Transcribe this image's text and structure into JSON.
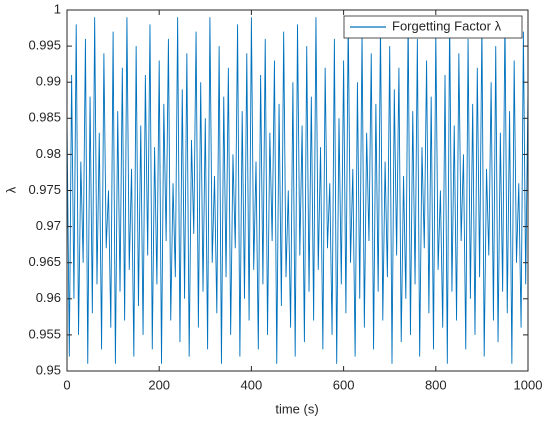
{
  "chart_data": {
    "type": "line",
    "xlabel": "time (s)",
    "ylabel": "λ",
    "xlim": [
      0,
      1000
    ],
    "xticks": [
      0,
      200,
      400,
      600,
      800,
      1000
    ],
    "ylim": [
      0.95,
      1
    ],
    "yticks": [
      0.95,
      0.955,
      0.96,
      0.965,
      0.97,
      0.975,
      0.98,
      0.985,
      0.99,
      0.995,
      1
    ],
    "grid": false,
    "legend_position": "top-right",
    "x": [
      0,
      5,
      10,
      15,
      20,
      25,
      30,
      35,
      40,
      45,
      50,
      55,
      60,
      65,
      70,
      75,
      80,
      85,
      90,
      95,
      100,
      105,
      110,
      115,
      120,
      125,
      130,
      135,
      140,
      145,
      150,
      155,
      160,
      165,
      170,
      175,
      180,
      185,
      190,
      195,
      200,
      205,
      210,
      215,
      220,
      225,
      230,
      235,
      240,
      245,
      250,
      255,
      260,
      265,
      270,
      275,
      280,
      285,
      290,
      295,
      300,
      305,
      310,
      315,
      320,
      325,
      330,
      335,
      340,
      345,
      350,
      355,
      360,
      365,
      370,
      375,
      380,
      385,
      390,
      395,
      400,
      405,
      410,
      415,
      420,
      425,
      430,
      435,
      440,
      445,
      450,
      455,
      460,
      465,
      470,
      475,
      480,
      485,
      490,
      495,
      500,
      505,
      510,
      515,
      520,
      525,
      530,
      535,
      540,
      545,
      550,
      555,
      560,
      565,
      570,
      575,
      580,
      585,
      590,
      595,
      600,
      605,
      610,
      615,
      620,
      625,
      630,
      635,
      640,
      645,
      650,
      655,
      660,
      665,
      670,
      675,
      680,
      685,
      690,
      695,
      700,
      705,
      710,
      715,
      720,
      725,
      730,
      735,
      740,
      745,
      750,
      755,
      760,
      765,
      770,
      775,
      780,
      785,
      790,
      795,
      800,
      805,
      810,
      815,
      820,
      825,
      830,
      835,
      840,
      845,
      850,
      855,
      860,
      865,
      870,
      875,
      880,
      885,
      890,
      895,
      900,
      905,
      910,
      915,
      920,
      925,
      930,
      935,
      940,
      945,
      950,
      955,
      960,
      965,
      970,
      975,
      980,
      985,
      990,
      995,
      1000
    ],
    "series": [
      {
        "name": "Forgetting Factor λ",
        "color": "#0072bd",
        "values": [
          0.985,
          0.952,
          0.991,
          0.96,
          0.998,
          0.955,
          0.979,
          0.965,
          0.996,
          0.951,
          0.988,
          0.958,
          0.999,
          0.962,
          0.983,
          0.953,
          0.994,
          0.967,
          0.975,
          0.956,
          0.997,
          0.951,
          0.986,
          0.961,
          0.992,
          0.957,
          0.999,
          0.964,
          0.978,
          0.952,
          0.995,
          0.959,
          0.984,
          0.955,
          0.991,
          0.966,
          0.998,
          0.953,
          0.981,
          0.962,
          0.993,
          0.951,
          0.987,
          0.968,
          0.996,
          0.957,
          0.976,
          0.963,
          0.999,
          0.954,
          0.989,
          0.96,
          0.994,
          0.952,
          0.982,
          0.969,
          0.997,
          0.956,
          0.99,
          0.961,
          0.985,
          0.953,
          0.999,
          0.965,
          0.977,
          0.958,
          0.995,
          0.951,
          0.988,
          0.963,
          0.992,
          0.955,
          0.98,
          0.967,
          0.998,
          0.952,
          0.986,
          0.96,
          0.994,
          0.957,
          0.999,
          0.964,
          0.979,
          0.953,
          0.991,
          0.962,
          0.996,
          0.955,
          0.983,
          0.968,
          0.993,
          0.951,
          0.987,
          0.959,
          0.997,
          0.963,
          0.975,
          0.956,
          0.99,
          0.952,
          0.998,
          0.966,
          0.984,
          0.954,
          0.995,
          0.961,
          0.988,
          0.957,
          0.999,
          0.964,
          0.981,
          0.953,
          0.992,
          0.967,
          0.976,
          0.955,
          0.996,
          0.951,
          0.985,
          0.962,
          0.993,
          0.958,
          0.999,
          0.965,
          0.978,
          0.952,
          0.99,
          0.96,
          0.997,
          0.956,
          0.983,
          0.968,
          0.994,
          0.953,
          0.987,
          0.961,
          0.998,
          0.957,
          0.979,
          0.963,
          0.995,
          0.951,
          0.989,
          0.966,
          0.992,
          0.954,
          0.977,
          0.96,
          0.999,
          0.955,
          0.986,
          0.962,
          0.996,
          0.952,
          0.981,
          0.967,
          0.993,
          0.958,
          0.988,
          0.953,
          0.997,
          0.964,
          0.975,
          0.956,
          0.991,
          0.951,
          0.999,
          0.961,
          0.984,
          0.957,
          0.994,
          0.968,
          0.98,
          0.953,
          0.996,
          0.96,
          0.987,
          0.955,
          0.992,
          0.963,
          0.998,
          0.952,
          0.978,
          0.966,
          0.99,
          0.957,
          0.995,
          0.954,
          0.983,
          0.961,
          0.999,
          0.958,
          0.986,
          0.951,
          0.993,
          0.965,
          0.976,
          0.956,
          0.997,
          0.962,
          0.989
        ]
      }
    ]
  }
}
